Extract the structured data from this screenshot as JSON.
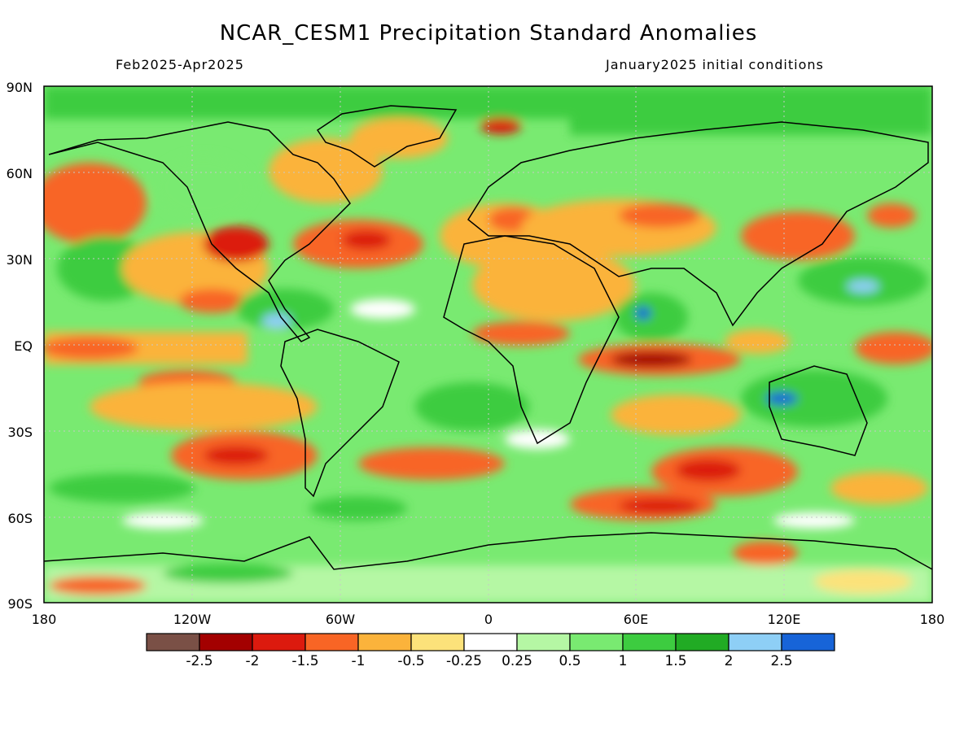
{
  "title": "NCAR_CESM1 Precipitation Standard Anomalies",
  "period": "Feb2025-Apr2025",
  "init": "January2025 initial conditions",
  "lat_labels": [
    "90N",
    "60N",
    "30N",
    "EQ",
    "30S",
    "60S",
    "90S"
  ],
  "lon_labels": [
    "180",
    "120W",
    "60W",
    "0",
    "60E",
    "120E",
    "180"
  ],
  "colorbar": {
    "colors": [
      "#7a5046",
      "#a30000",
      "#dc1a0e",
      "#f86525",
      "#fbb33b",
      "#fce27a",
      "#ffffff",
      "#b5f7a4",
      "#79ea71",
      "#3dcc40",
      "#21ab24",
      "#8ecff6",
      "#1764d8"
    ],
    "labels": [
      "-2.5",
      "-2",
      "-1.5",
      "-1",
      "-0.5",
      "-0.25",
      "0.25",
      "0.5",
      "1",
      "1.5",
      "2",
      "2.5"
    ]
  },
  "palette": {
    "ocean_base": "#fbb33b",
    "wet": "#3dcc40",
    "dry": "#f86525",
    "coast": "#000000"
  }
}
